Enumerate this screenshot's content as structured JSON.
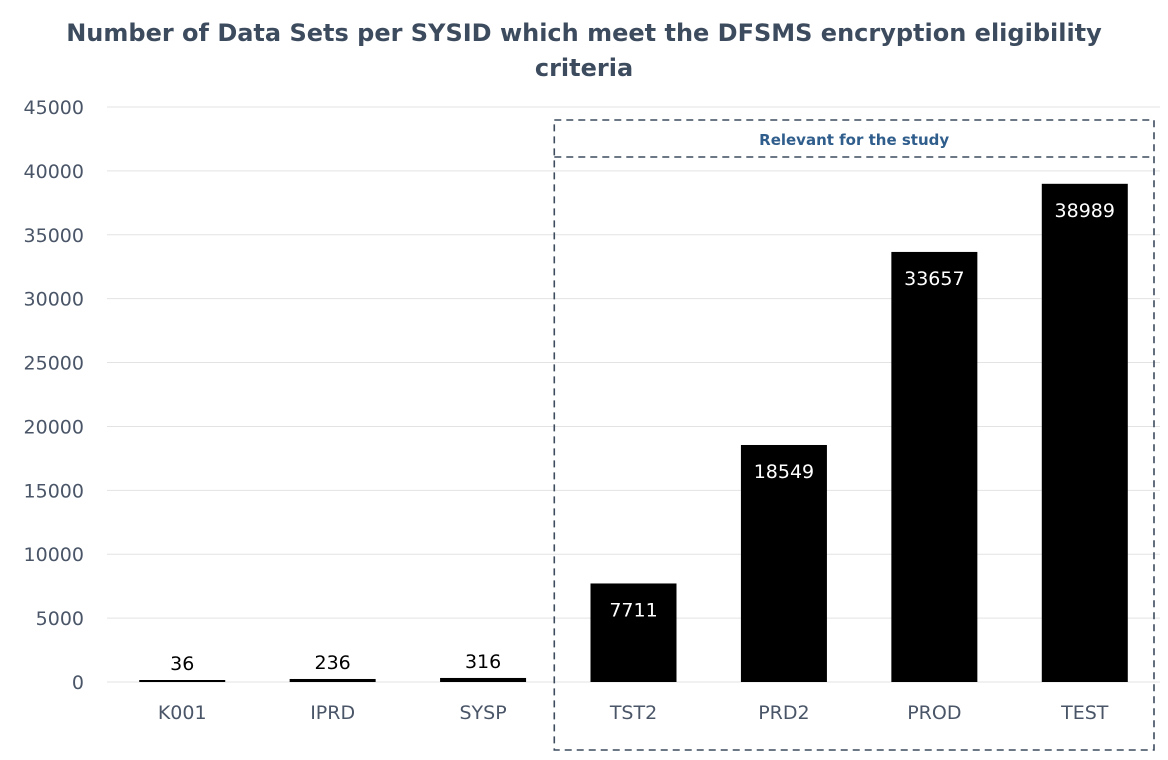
{
  "chart_data": {
    "type": "bar",
    "title_lines": [
      "Number of Data Sets per SYSID which meet the DFSMS encryption eligibility",
      "criteria"
    ],
    "xlabel": "",
    "ylabel": "",
    "categories": [
      "K001",
      "IPRD",
      "SYSP",
      "TST2",
      "PRD2",
      "PROD",
      "TEST"
    ],
    "values": [
      36,
      236,
      316,
      7711,
      18549,
      33657,
      38989
    ],
    "data_labels": [
      "36",
      "236",
      "316",
      "7711",
      "18549",
      "33657",
      "38989"
    ],
    "ylim": [
      0,
      45000
    ],
    "yticks": [
      0,
      5000,
      10000,
      15000,
      20000,
      25000,
      30000,
      35000,
      40000,
      45000
    ],
    "ytick_labels": [
      "0",
      "5000",
      "10000",
      "15000",
      "20000",
      "25000",
      "30000",
      "35000",
      "40000",
      "45000"
    ],
    "grid": true,
    "bar_color": "#000000",
    "grid_color": "#e3e3e3",
    "legend": "none",
    "annotation": {
      "label": "Relevant for the study",
      "categories": [
        "TST2",
        "PRD2",
        "PROD",
        "TEST"
      ],
      "border_color": "#3d4b5e"
    }
  }
}
